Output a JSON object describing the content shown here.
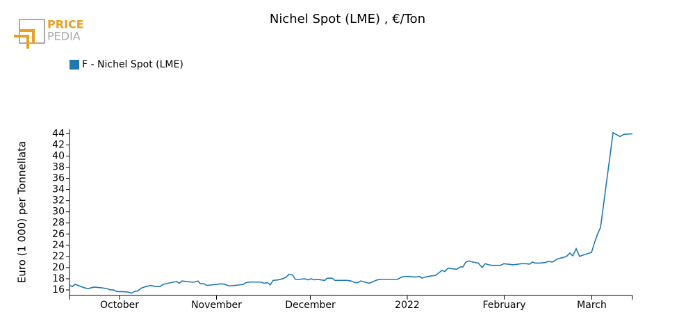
{
  "logo": [
    "PRICE",
    "PEDIA"
  ],
  "chart_data": {
    "type": "line",
    "title": "Nichel Spot (LME) , €/Ton",
    "y_label": "Euro (1 000) per Tonnellata",
    "legend": "top-left",
    "xlim": [
      0,
      180
    ],
    "xticks": [
      {
        "value": 16,
        "label": "October"
      },
      {
        "value": 47,
        "label": "November"
      },
      {
        "value": 77,
        "label": "December"
      },
      {
        "value": 108,
        "label": "2022"
      },
      {
        "value": 139,
        "label": "February"
      },
      {
        "value": 167,
        "label": "March"
      }
    ],
    "ylim": [
      15,
      44.8
    ],
    "yticks": [
      16,
      18,
      20,
      22,
      24,
      26,
      28,
      30,
      32,
      34,
      36,
      38,
      40,
      42,
      44
    ],
    "x": [
      0,
      0.9,
      1.8,
      3.6,
      5.8,
      7.8,
      10,
      12.2,
      12.9,
      14,
      15.1,
      16.7,
      18.9,
      19.8,
      20.7,
      21.8,
      22.9,
      24.4,
      26,
      27.6,
      28.9,
      30,
      31.6,
      33.3,
      34.2,
      35.1,
      36,
      37.3,
      38.9,
      40,
      41.1,
      41.8,
      42.9,
      44,
      45.6,
      47.1,
      48.4,
      49.6,
      51.1,
      52.9,
      54.4,
      55.6,
      56.4,
      57.8,
      59.6,
      61.1,
      62.2,
      63.3,
      64.2,
      65.1,
      66.7,
      68.2,
      69.3,
      70.2,
      71.3,
      72.2,
      73.8,
      75.1,
      76.2,
      77.3,
      78.2,
      79.1,
      80.4,
      81.6,
      82.4,
      84,
      84.9,
      86.2,
      87.8,
      88.9,
      90,
      91.3,
      92.2,
      93.1,
      94.4,
      95.8,
      97.1,
      98.4,
      100,
      101.6,
      103.3,
      104.9,
      106.2,
      107.3,
      108.9,
      110.4,
      112,
      112.7,
      113.8,
      115.6,
      117.1,
      118.2,
      119.1,
      120,
      121.1,
      122.2,
      123.8,
      124.9,
      125.8,
      126.7,
      127.8,
      128.9,
      130.7,
      132,
      132.9,
      134,
      135.1,
      136.7,
      137.8,
      138.9,
      140.4,
      141.8,
      143.3,
      144.4,
      146,
      147.1,
      148,
      148.9,
      150.4,
      152,
      153.1,
      154.4,
      155.3,
      156.2,
      157.8,
      158.9,
      160,
      160.9,
      162,
      163.1,
      164,
      165.6,
      166.9,
      168,
      168.9,
      169.8,
      173.8,
      176,
      177.3,
      180
    ],
    "series": [
      {
        "name": "F - Nichel Spot (LME)",
        "color": "#1f77b4",
        "values": [
          16.8,
          16.6,
          17.0,
          16.6,
          16.2,
          16.5,
          16.4,
          16.2,
          16.0,
          16.0,
          15.7,
          15.7,
          15.6,
          15.4,
          15.7,
          15.8,
          16.3,
          16.6,
          16.8,
          16.6,
          16.6,
          17.0,
          17.2,
          17.4,
          17.5,
          17.2,
          17.6,
          17.5,
          17.4,
          17.4,
          17.6,
          17.1,
          17.1,
          16.8,
          16.9,
          17.0,
          17.1,
          17.0,
          16.7,
          16.8,
          16.9,
          17.0,
          17.3,
          17.4,
          17.4,
          17.4,
          17.2,
          17.3,
          16.9,
          17.7,
          17.8,
          18.0,
          18.3,
          18.8,
          18.7,
          17.9,
          17.9,
          18.0,
          17.8,
          18.0,
          17.8,
          17.9,
          17.8,
          17.7,
          18.1,
          18.1,
          17.7,
          17.7,
          17.7,
          17.7,
          17.6,
          17.3,
          17.3,
          17.6,
          17.4,
          17.2,
          17.5,
          17.8,
          17.9,
          17.9,
          17.9,
          17.9,
          18.3,
          18.4,
          18.4,
          18.3,
          18.4,
          18.1,
          18.3,
          18.5,
          18.6,
          19.1,
          19.5,
          19.3,
          19.9,
          19.8,
          19.7,
          20.1,
          20.1,
          21.0,
          21.2,
          21.0,
          20.8,
          20.0,
          20.7,
          20.5,
          20.4,
          20.4,
          20.4,
          20.7,
          20.6,
          20.5,
          20.6,
          20.7,
          20.7,
          20.6,
          21.0,
          20.8,
          20.8,
          20.9,
          21.1,
          21.0,
          21.3,
          21.6,
          21.8,
          22.0,
          22.6,
          22.1,
          23.4,
          22.0,
          22.2,
          22.5,
          22.7,
          24.7,
          26.1,
          27.2,
          44.2,
          43.5,
          43.9,
          44.0
        ]
      }
    ]
  }
}
